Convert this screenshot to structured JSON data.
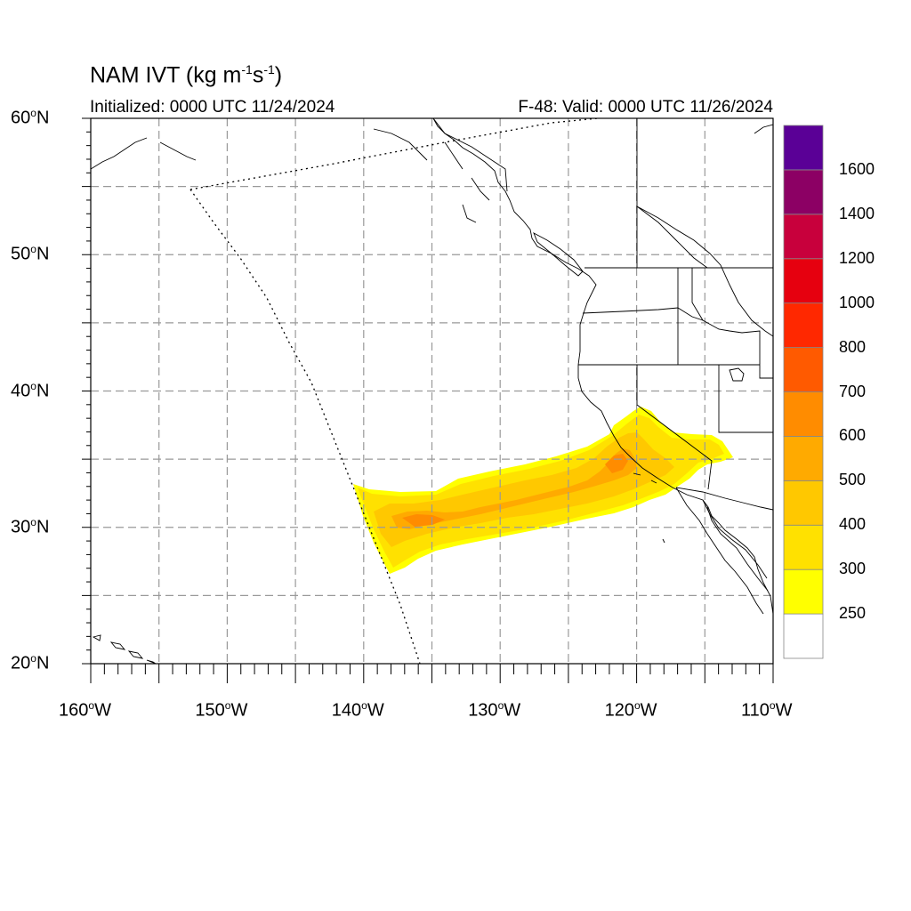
{
  "title": {
    "main_prefix": "NAM IVT (kg m",
    "exp1": "-1",
    "mid": "s",
    "exp2": "-1",
    "suffix": ")"
  },
  "initialized": "Initialized: 0000 UTC 11/24/2024",
  "valid": "F-48: Valid: 0000 UTC 11/26/2024",
  "axes": {
    "lat_labels": [
      {
        "deg": "60",
        "hemi": "N"
      },
      {
        "deg": "50",
        "hemi": "N"
      },
      {
        "deg": "40",
        "hemi": "N"
      },
      {
        "deg": "30",
        "hemi": "N"
      },
      {
        "deg": "20",
        "hemi": "N"
      }
    ],
    "lon_labels": [
      {
        "deg": "160",
        "hemi": "W"
      },
      {
        "deg": "150",
        "hemi": "W"
      },
      {
        "deg": "140",
        "hemi": "W"
      },
      {
        "deg": "130",
        "hemi": "W"
      },
      {
        "deg": "120",
        "hemi": "W"
      },
      {
        "deg": "110",
        "hemi": "W"
      }
    ],
    "lat_range": [
      20,
      60
    ],
    "lon_range": [
      -160,
      -110
    ]
  },
  "colorbar": {
    "levels": [
      "250",
      "300",
      "400",
      "500",
      "600",
      "700",
      "800",
      "1000",
      "1200",
      "1400",
      "1600"
    ],
    "colors": [
      "#ffffff",
      "#ffff00",
      "#ffe100",
      "#ffc800",
      "#ffaa00",
      "#ff8c00",
      "#ff5a00",
      "#ff2800",
      "#e6000f",
      "#c8003c",
      "#8c0064",
      "#5a0096"
    ]
  },
  "map_features": {
    "projection": "equidistant cylindrical",
    "grid": "dashed gray at 5 degree intervals",
    "domain_boundary": "dotted line (NAM model domain edge)",
    "feature": "atmospheric river plume from ~140W 30N to ~114W 35N"
  }
}
